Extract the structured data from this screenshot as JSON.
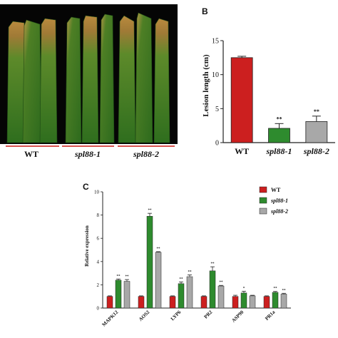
{
  "panels": {
    "b_letter": "B",
    "c_letter": "C"
  },
  "photo": {
    "labels": [
      "WT",
      "spl88-1",
      "spl88-2"
    ],
    "underline_color": "#d9534f"
  },
  "chart_data": [
    {
      "type": "bar",
      "panel": "B",
      "categories": [
        "WT",
        "spl88-1",
        "spl88-2"
      ],
      "values": [
        12.5,
        2.1,
        3.1
      ],
      "errors": [
        0.2,
        0.7,
        0.8
      ],
      "colors": [
        "#cc1f1f",
        "#2e8b2e",
        "#a8a8a8"
      ],
      "significance": [
        "",
        "**",
        "**"
      ],
      "ylabel": "Lesion length (cm)",
      "ylim": [
        0,
        15
      ],
      "yticks": [
        0,
        5,
        10,
        15
      ]
    },
    {
      "type": "bar",
      "panel": "C",
      "categories": [
        "MAPK12",
        "AOS2",
        "LYP6",
        "PR2",
        "ASP90",
        "PR1a"
      ],
      "series": [
        {
          "name": "WT",
          "values": [
            1.0,
            1.0,
            1.0,
            1.0,
            1.0,
            1.0
          ],
          "errors": [
            0.05,
            0.05,
            0.05,
            0.05,
            0.1,
            0.05
          ],
          "color": "#cc1f1f"
        },
        {
          "name": "spl88-1",
          "values": [
            2.4,
            7.9,
            2.1,
            3.2,
            1.3,
            1.35
          ],
          "errors": [
            0.1,
            0.25,
            0.15,
            0.35,
            0.15,
            0.08
          ],
          "color": "#2e8b2e"
        },
        {
          "name": "spl88-2",
          "values": [
            2.3,
            4.8,
            2.7,
            1.9,
            1.05,
            1.2
          ],
          "errors": [
            0.15,
            0.05,
            0.15,
            0.05,
            0.05,
            0.07
          ],
          "color": "#a8a8a8"
        }
      ],
      "significance": [
        [
          "",
          "**",
          "**"
        ],
        [
          "",
          "**",
          "**"
        ],
        [
          "",
          "**",
          "**"
        ],
        [
          "",
          "**",
          "**"
        ],
        [
          "",
          "*",
          ""
        ],
        [
          "",
          "**",
          "**"
        ]
      ],
      "ylabel": "Relative expression",
      "ylim": [
        0,
        10
      ],
      "yticks": [
        0,
        2,
        4,
        6,
        8,
        10
      ],
      "legend_position": "top-right"
    }
  ]
}
